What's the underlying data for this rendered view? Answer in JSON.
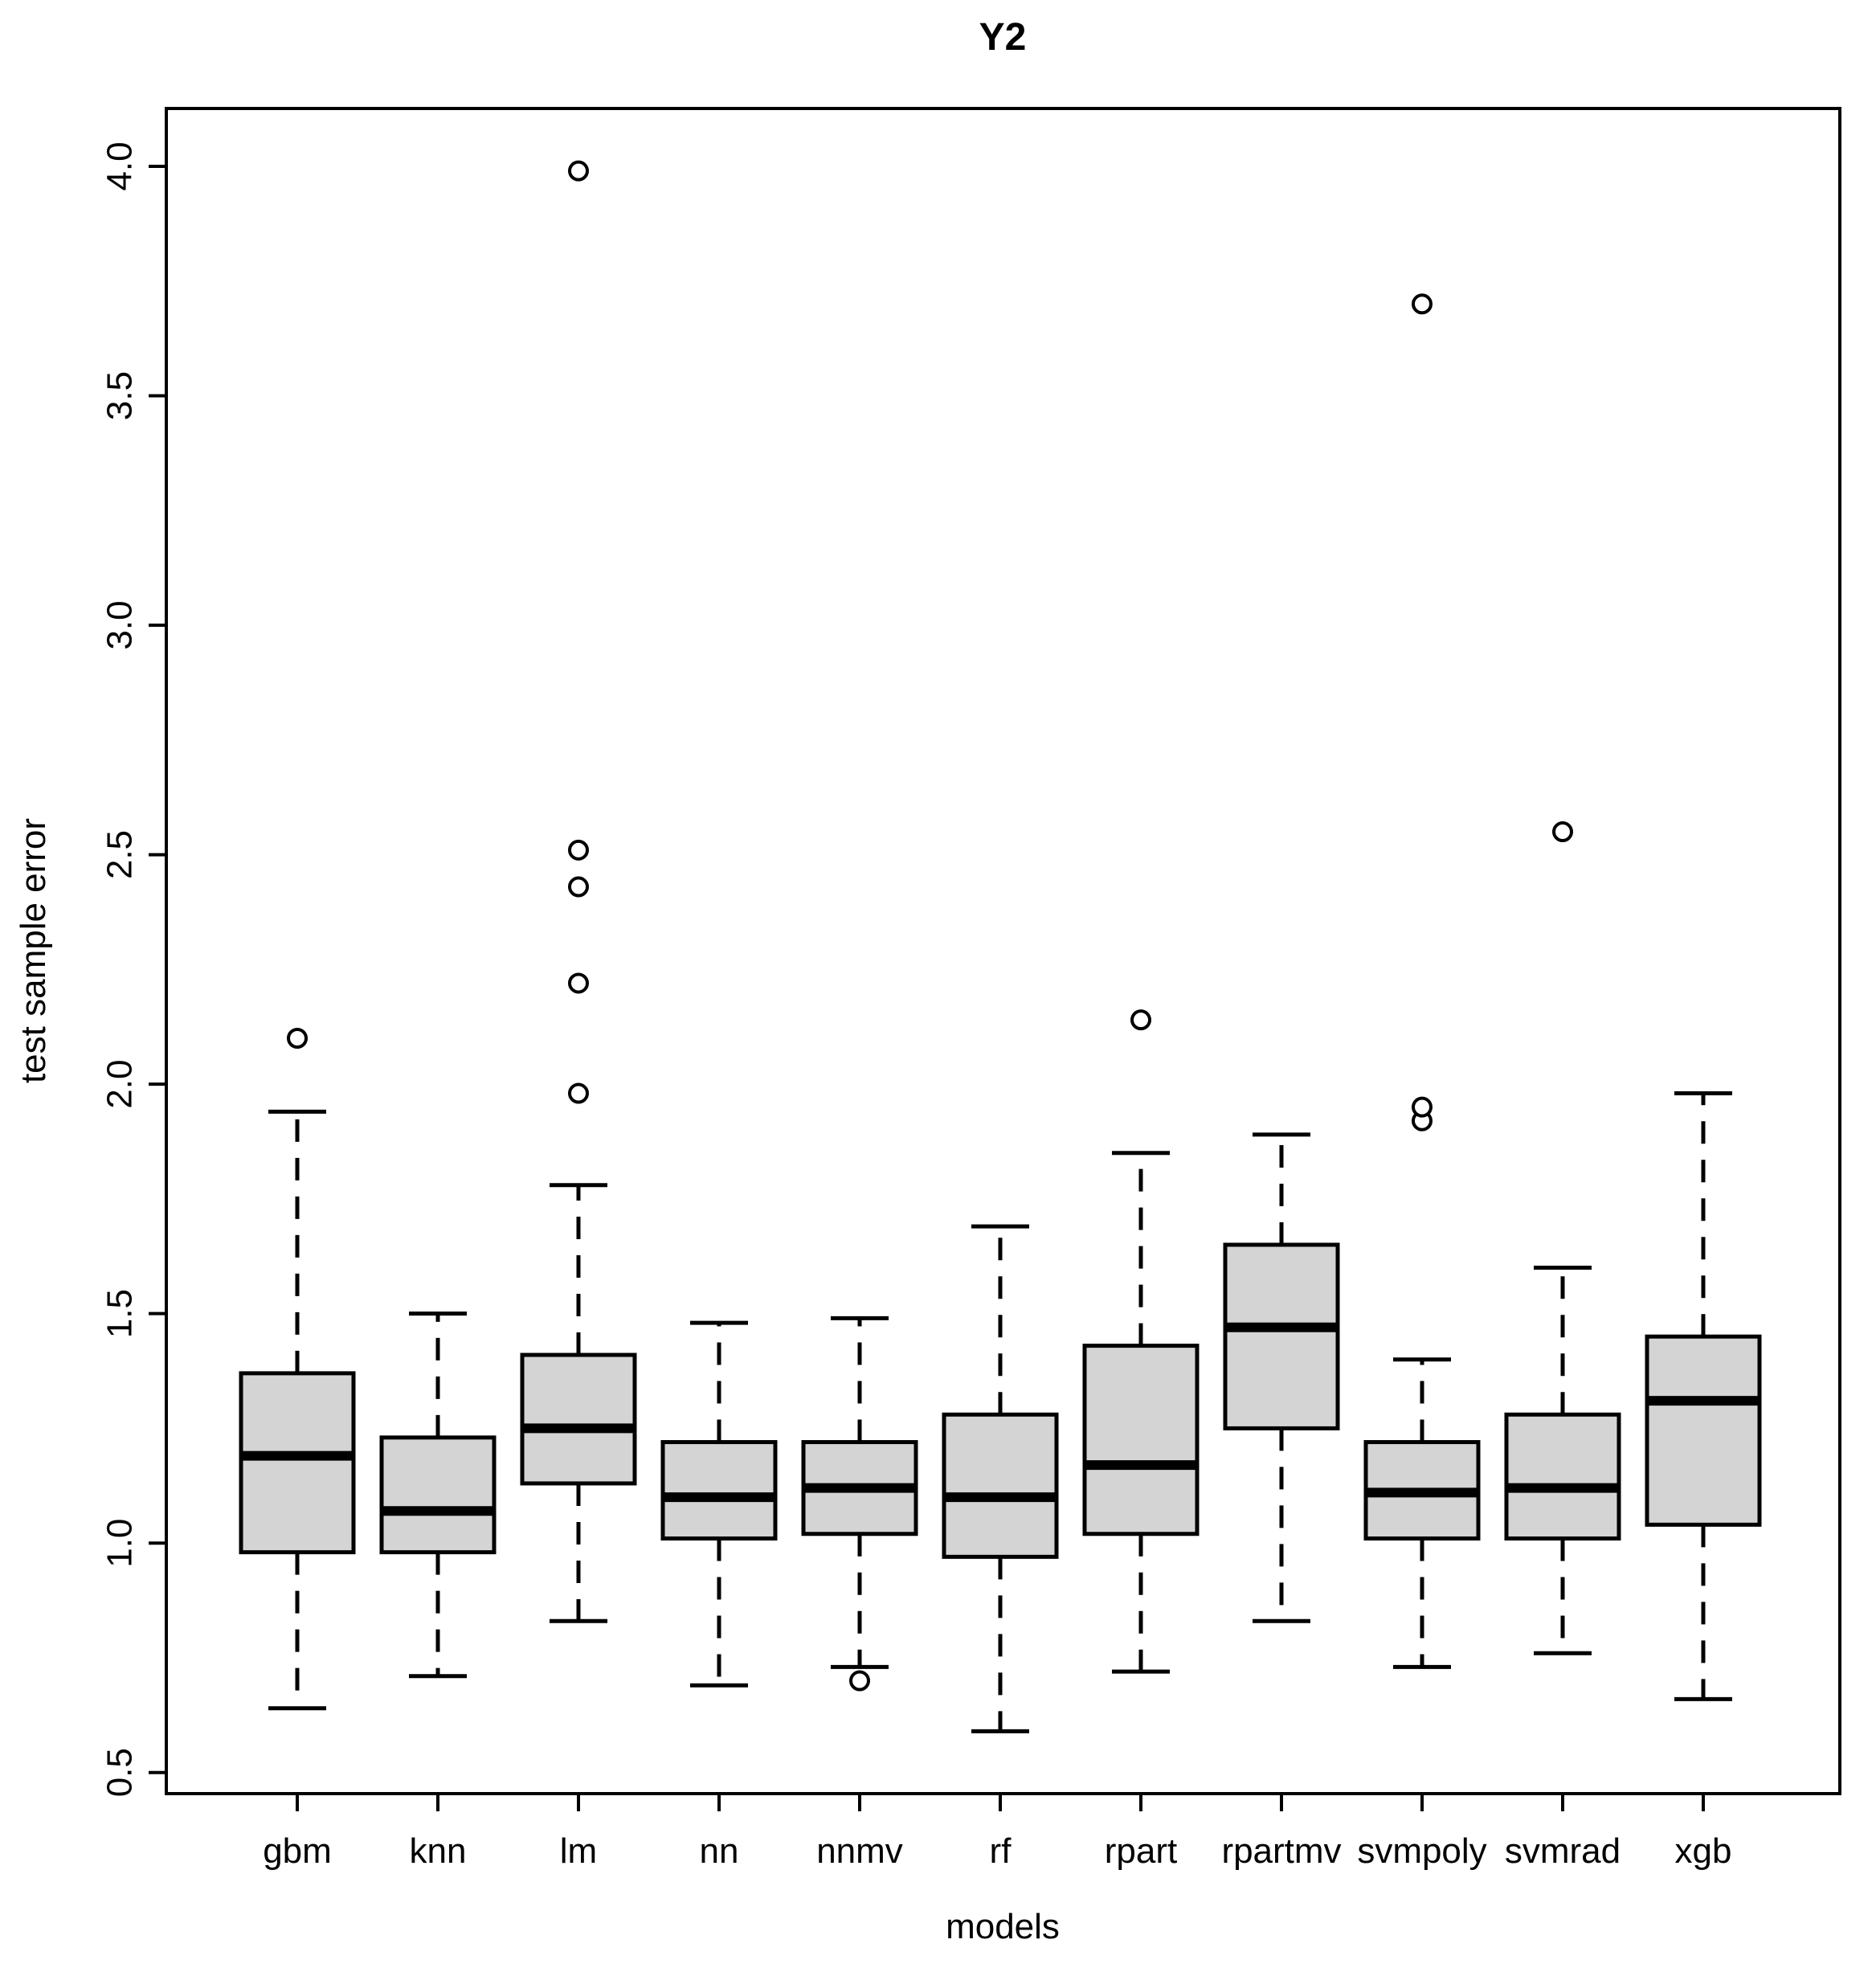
{
  "page": {
    "background": "#ffffff"
  },
  "colors": {
    "box_fill": "#d4d4d4",
    "stroke": "#000000",
    "background": "#ffffff"
  },
  "chart_data": {
    "type": "boxplot",
    "title": "Y2",
    "xlabel": "models",
    "ylabel": "test sample error",
    "ylim": [
      0.5,
      4.0
    ],
    "yticks": [
      "0.5",
      "1.0",
      "1.5",
      "2.0",
      "2.5",
      "3.0",
      "3.5",
      "4.0"
    ],
    "ytick_values": [
      0.5,
      1.0,
      1.5,
      2.0,
      2.5,
      3.0,
      3.5,
      4.0
    ],
    "grid": "off",
    "legend": "none",
    "categories": [
      "gbm",
      "knn",
      "lm",
      "nn",
      "nnmv",
      "rf",
      "rpart",
      "rpartmv",
      "svmpoly",
      "svmrad",
      "xgb"
    ],
    "series": [
      {
        "name": "gbm",
        "whisker_low": 0.64,
        "q1": 0.98,
        "median": 1.19,
        "q3": 1.37,
        "whisker_high": 1.94,
        "outliers": [
          2.1
        ]
      },
      {
        "name": "knn",
        "whisker_low": 0.71,
        "q1": 0.98,
        "median": 1.07,
        "q3": 1.23,
        "whisker_high": 1.5,
        "outliers": []
      },
      {
        "name": "lm",
        "whisker_low": 0.83,
        "q1": 1.13,
        "median": 1.25,
        "q3": 1.41,
        "whisker_high": 1.78,
        "outliers": [
          1.98,
          2.22,
          2.43,
          2.51,
          3.99
        ]
      },
      {
        "name": "nn",
        "whisker_low": 0.69,
        "q1": 1.01,
        "median": 1.1,
        "q3": 1.22,
        "whisker_high": 1.48,
        "outliers": []
      },
      {
        "name": "nnmv",
        "whisker_low": 0.73,
        "q1": 1.02,
        "median": 1.12,
        "q3": 1.22,
        "whisker_high": 1.49,
        "outliers": [
          0.7
        ]
      },
      {
        "name": "rf",
        "whisker_low": 0.59,
        "q1": 0.97,
        "median": 1.1,
        "q3": 1.28,
        "whisker_high": 1.69,
        "outliers": []
      },
      {
        "name": "rpart",
        "whisker_low": 0.72,
        "q1": 1.02,
        "median": 1.17,
        "q3": 1.43,
        "whisker_high": 1.85,
        "outliers": [
          2.14
        ]
      },
      {
        "name": "rpartmv",
        "whisker_low": 0.83,
        "q1": 1.25,
        "median": 1.47,
        "q3": 1.65,
        "whisker_high": 1.89,
        "outliers": []
      },
      {
        "name": "svmpoly",
        "whisker_low": 0.73,
        "q1": 1.01,
        "median": 1.11,
        "q3": 1.22,
        "whisker_high": 1.4,
        "outliers": [
          1.92,
          1.95,
          3.7
        ]
      },
      {
        "name": "svmrad",
        "whisker_low": 0.76,
        "q1": 1.01,
        "median": 1.12,
        "q3": 1.28,
        "whisker_high": 1.6,
        "outliers": [
          2.55
        ]
      },
      {
        "name": "xgb",
        "whisker_low": 0.66,
        "q1": 1.04,
        "median": 1.31,
        "q3": 1.45,
        "whisker_high": 1.98,
        "outliers": []
      }
    ]
  }
}
